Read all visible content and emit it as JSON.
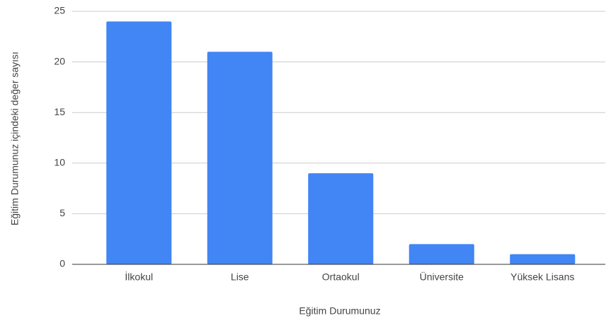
{
  "chart_data": {
    "type": "bar",
    "categories": [
      "İlkokul",
      "Lise",
      "Ortaokul",
      "Üniversite",
      "Yüksek Lisans"
    ],
    "values": [
      24,
      21,
      9,
      2,
      1
    ],
    "color": "#4285f4",
    "xlabel": "Eğitim Durumunuz",
    "ylabel": "Eğitim Durumunuz içindeki değer sayısı",
    "ylim": [
      0,
      25
    ],
    "yticks": [
      0,
      5,
      10,
      15,
      20,
      25
    ],
    "grid": true
  }
}
